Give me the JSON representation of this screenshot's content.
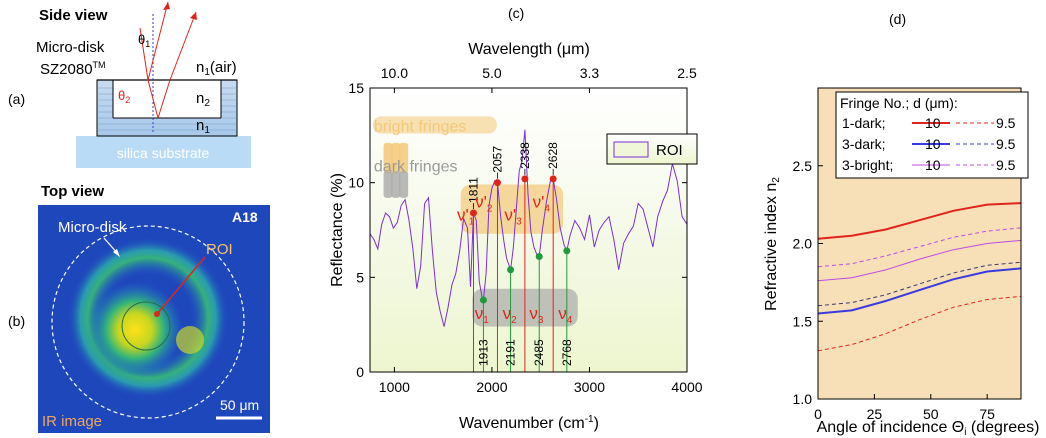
{
  "panel_labels": {
    "a": "(a)",
    "b": "(b)",
    "c": "(c)",
    "d": "(d)"
  },
  "panel_a": {
    "title": "Side view",
    "disk_label_1": "Micro-disk",
    "disk_label_2": "SZ2080",
    "disk_label_tm": "TM",
    "theta1": "θ",
    "theta1_sub": "1",
    "theta2": "θ",
    "theta2_sub": "2",
    "n1_air": "n",
    "n1_air_sub": "1",
    "n1_air_tail": "(air)",
    "n2": "n",
    "n2_sub": "2",
    "n1": "n",
    "n1_sub": "1",
    "substrate": "silica substrate"
  },
  "panel_b": {
    "title": "Top view",
    "sample": "A18",
    "disk": "Micro-disk",
    "roi": "ROI",
    "image_label": "IR image",
    "scalebar": "50 μm"
  },
  "panel_c": {
    "chart_data": {
      "type": "line",
      "xlabel": "Wavenumber (cm",
      "xlabel_sup": "-1",
      "xlabel_tail": ")",
      "ylabel": "Reflectance (%)",
      "top_axis_label": "Wavelength (μm)",
      "xlim": [
        750,
        4000
      ],
      "ylim": [
        0,
        15
      ],
      "x_ticks": [
        1000,
        2000,
        3000,
        4000
      ],
      "x_tick_labels": [
        "1000",
        "2000",
        "3000",
        "4000"
      ],
      "y_ticks": [
        0,
        5,
        10,
        15
      ],
      "y_tick_labels": [
        "0",
        "5",
        "10",
        "15"
      ],
      "top_ticks": [
        1000,
        2000,
        3000,
        4000
      ],
      "top_tick_labels": [
        "10.0",
        "5.0",
        "3.3",
        "2.5"
      ],
      "legend": [
        "ROI"
      ],
      "series": [
        {
          "name": "ROI",
          "color": "#7b2fd6",
          "x": [
            750,
            790,
            830,
            870,
            910,
            950,
            990,
            1030,
            1070,
            1110,
            1150,
            1190,
            1230,
            1270,
            1310,
            1350,
            1390,
            1430,
            1470,
            1510,
            1550,
            1590,
            1630,
            1670,
            1710,
            1750,
            1780,
            1811,
            1840,
            1870,
            1900,
            1913,
            1940,
            1970,
            2000,
            2030,
            2057,
            2090,
            2120,
            2150,
            2191,
            2220,
            2250,
            2280,
            2310,
            2338,
            2370,
            2400,
            2430,
            2460,
            2485,
            2520,
            2560,
            2600,
            2628,
            2660,
            2700,
            2740,
            2768,
            2800,
            2850,
            2900,
            2950,
            3000,
            3050,
            3100,
            3150,
            3200,
            3250,
            3300,
            3350,
            3400,
            3450,
            3500,
            3550,
            3600,
            3650,
            3700,
            3750,
            3800,
            3850,
            3900,
            3950,
            4000
          ],
          "y": [
            7.3,
            7.0,
            6.5,
            7.8,
            8.4,
            8.2,
            7.6,
            7.9,
            8.8,
            9.1,
            8.0,
            6.5,
            4.4,
            5.6,
            8.9,
            9.2,
            6.4,
            4.2,
            3.2,
            2.4,
            3.4,
            4.6,
            5.2,
            6.4,
            8.1,
            7.6,
            4.5,
            8.4,
            8.0,
            4.8,
            3.9,
            3.8,
            5.2,
            8.8,
            9.7,
            10.1,
            10.0,
            8.2,
            7.0,
            6.0,
            5.4,
            6.6,
            8.6,
            10.6,
            11.2,
            12.8,
            9.4,
            7.4,
            6.6,
            6.2,
            6.1,
            7.6,
            9.0,
            10.1,
            10.2,
            9.2,
            7.6,
            6.7,
            6.4,
            7.2,
            8.0,
            7.6,
            7.0,
            8.3,
            6.6,
            7.5,
            7.9,
            8.2,
            7.0,
            5.4,
            6.8,
            7.3,
            7.7,
            8.9,
            8.6,
            7.6,
            6.6,
            8.2,
            9.0,
            9.6,
            11.0,
            10.1,
            8.2,
            7.8
          ]
        }
      ],
      "peak_labels_top": [
        "1811",
        "2057",
        "2338",
        "2628"
      ],
      "peak_x_top": [
        1811,
        2057,
        2338,
        2628
      ],
      "peak_y_top": [
        8.4,
        10.0,
        10.2,
        10.2
      ],
      "peak_labels_bottom": [
        "1913",
        "2191",
        "2485",
        "2768"
      ],
      "peak_x_bottom": [
        1913,
        2191,
        2485,
        2768
      ],
      "peak_y_bottom": [
        3.8,
        5.4,
        6.1,
        6.4
      ],
      "annotations": {
        "bright": "bright fringes",
        "dark": "dark fringes",
        "nu": "ν",
        "prime_nu": "ν'",
        "subs": [
          "1",
          "2",
          "3",
          "4"
        ]
      },
      "colors": {
        "bright_peak": "#e0241c",
        "dark_peak": "#1f9b3a",
        "glow": "#f3c877",
        "dark_glow": "#a9a9a9"
      }
    }
  },
  "panel_d": {
    "chart_data": {
      "type": "line",
      "xlabel": "Angle of incidence Θ",
      "xlabel_sub": "i",
      "xlabel_tail": " (degrees)",
      "ylabel": "Refractive index n",
      "ylabel_sub": "2",
      "xlim": [
        0,
        90
      ],
      "ylim": [
        1.0,
        3.0
      ],
      "x_ticks": [
        0,
        25,
        50,
        75
      ],
      "x_tick_labels": [
        "0",
        "25",
        "50",
        "75"
      ],
      "y_ticks": [
        1.0,
        1.5,
        2.0,
        2.5
      ],
      "y_tick_labels": [
        "1.0",
        "1.5",
        "2.0",
        "2.5"
      ],
      "legend_title": "Fringe No.; d (μm):",
      "legend_rows": [
        {
          "label": "1-dark;",
          "solid": "10",
          "dashed": "9.5",
          "color": "#e0241c"
        },
        {
          "label": "3-dark;",
          "solid": "10",
          "dashed": "9.5",
          "color": "#3a3adf"
        },
        {
          "label": "3-bright;",
          "solid": "10",
          "dashed": "9.5",
          "color": "#c04be0"
        }
      ],
      "background": "#f7dfb7",
      "series": [
        {
          "name": "1-dark; 10",
          "color": "#e0241c",
          "dash": false,
          "width": 2,
          "x": [
            0,
            15,
            30,
            45,
            60,
            75,
            90
          ],
          "y": [
            2.03,
            2.05,
            2.09,
            2.15,
            2.21,
            2.25,
            2.26
          ]
        },
        {
          "name": "1-dark; 9.5",
          "color": "#e0241c",
          "dash": true,
          "width": 1,
          "x": [
            0,
            15,
            30,
            45,
            60,
            75,
            90
          ],
          "y": [
            1.31,
            1.35,
            1.42,
            1.51,
            1.59,
            1.64,
            1.66
          ]
        },
        {
          "name": "3-dark; 10",
          "color": "#3a3adf",
          "dash": false,
          "width": 2,
          "x": [
            0,
            15,
            30,
            45,
            60,
            75,
            90
          ],
          "y": [
            1.55,
            1.57,
            1.63,
            1.7,
            1.77,
            1.82,
            1.84
          ]
        },
        {
          "name": "3-dark; 9.5",
          "color": "#3a3a70",
          "dash": true,
          "width": 1,
          "x": [
            0,
            15,
            30,
            45,
            60,
            75,
            90
          ],
          "y": [
            1.6,
            1.62,
            1.67,
            1.74,
            1.81,
            1.86,
            1.88
          ]
        },
        {
          "name": "3-bright; 10",
          "color": "#c04be0",
          "dash": false,
          "width": 1,
          "x": [
            0,
            15,
            30,
            45,
            60,
            75,
            90
          ],
          "y": [
            1.76,
            1.78,
            1.83,
            1.9,
            1.96,
            2.0,
            2.02
          ]
        },
        {
          "name": "3-bright; 9.5",
          "color": "#c04be0",
          "dash": true,
          "width": 1,
          "x": [
            0,
            15,
            30,
            45,
            60,
            75,
            90
          ],
          "y": [
            1.85,
            1.87,
            1.92,
            1.98,
            2.04,
            2.08,
            2.1
          ]
        }
      ]
    }
  }
}
